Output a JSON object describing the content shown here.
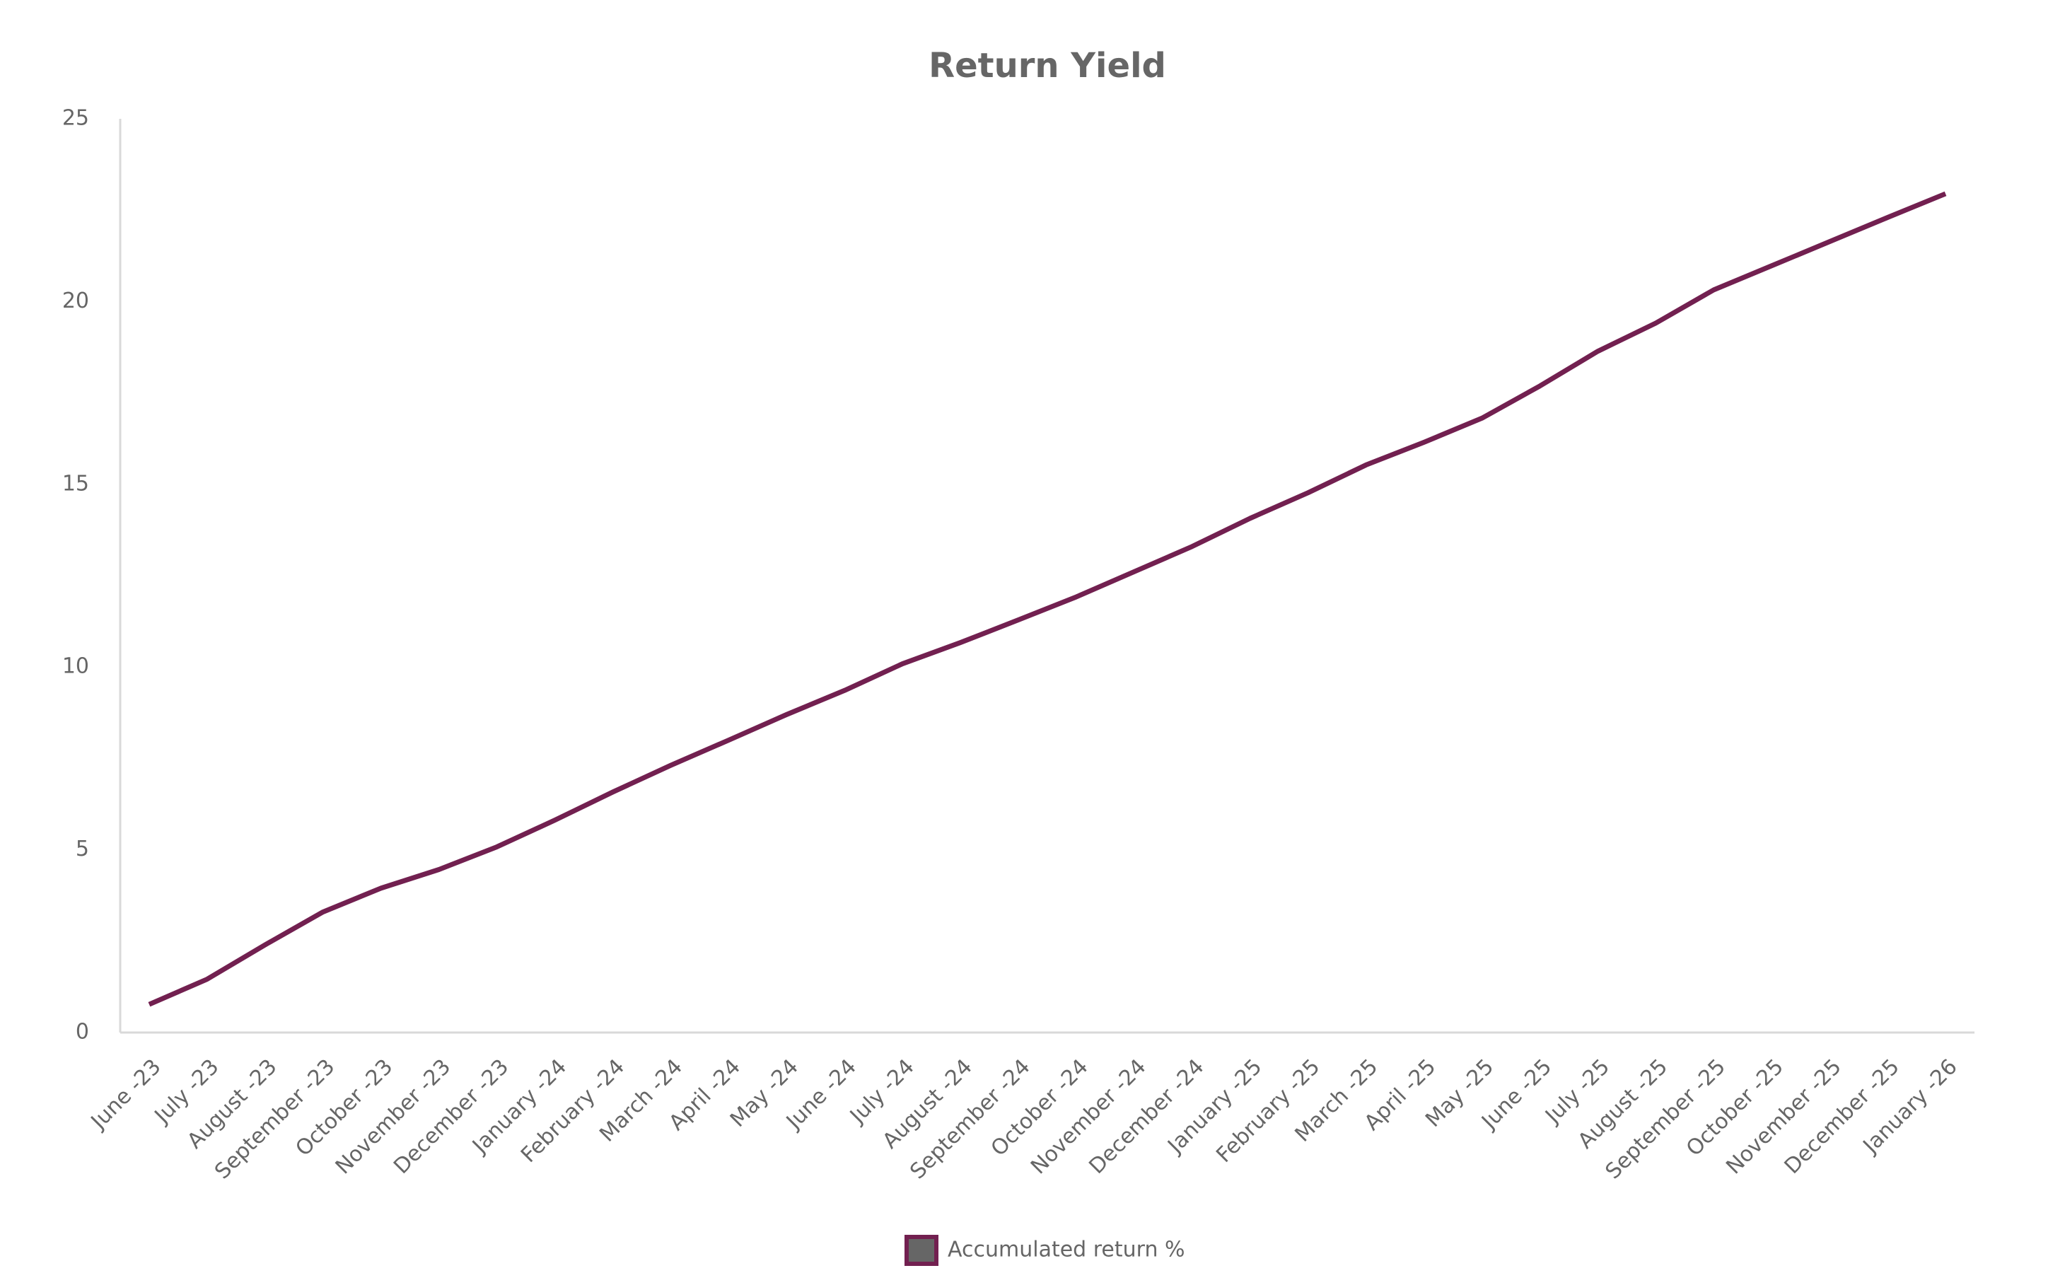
{
  "chart_data": {
    "type": "line",
    "title": "Return Yield",
    "categories": [
      "June -23",
      "July -23",
      "August -23",
      "September -23",
      "October -23",
      "November -23",
      "December -23",
      "January -24",
      "February -24",
      "March -24",
      "April -24",
      "May -24",
      "June -24",
      "July -24",
      "August -24",
      "September -24",
      "October -24",
      "November -24",
      "December -24",
      "January -25",
      "February -25",
      "March -25",
      "April -25",
      "May -25",
      "June -25",
      "July -25",
      "August -25",
      "September -25",
      "October -25",
      "November -25",
      "December -25",
      "January -26"
    ],
    "series": [
      {
        "name": "Accumulated return %",
        "color": "#722050",
        "values": [
          0.77,
          1.46,
          2.4,
          3.3,
          3.95,
          4.46,
          5.08,
          5.81,
          6.58,
          7.31,
          8.0,
          8.7,
          9.36,
          10.09,
          10.67,
          11.29,
          11.92,
          12.61,
          13.3,
          14.07,
          14.77,
          15.53,
          16.15,
          16.81,
          17.69,
          18.64,
          19.41,
          20.32,
          20.98,
          21.64,
          22.3,
          22.95
        ]
      }
    ],
    "ylim": [
      0,
      25
    ],
    "yticks": [
      0,
      5,
      10,
      15,
      20,
      25
    ],
    "grid": false,
    "legend": "bottom"
  }
}
